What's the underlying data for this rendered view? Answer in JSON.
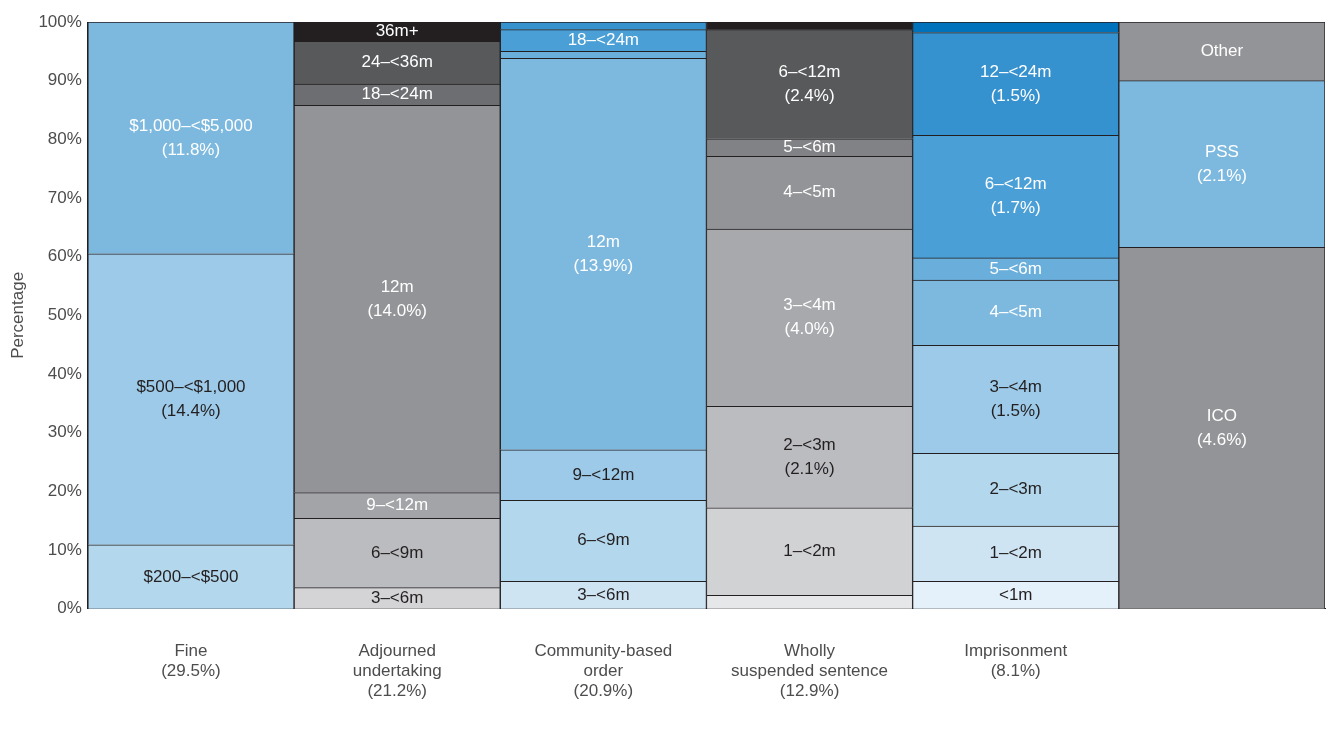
{
  "chart_data": {
    "type": "bar",
    "stacked": true,
    "ylabel": "Percentage",
    "legend": false,
    "grid": false,
    "categories": [
      "Fine\n(29.5%)",
      "Adjourned\nundertaking\n(21.2%)",
      "Community-based\norder\n(20.9%)",
      "Wholly\nsuspended sentence\n(12.9%)",
      "Imprisonment\n(8.1%)",
      null
    ],
    "ylim": [
      0,
      100
    ],
    "yticks": [
      {
        "value": 0,
        "label": "0%"
      },
      {
        "value": 10,
        "label": "10%"
      },
      {
        "value": 20,
        "label": "20%"
      },
      {
        "value": 30,
        "label": "30%"
      },
      {
        "value": 40,
        "label": "40%"
      },
      {
        "value": 50,
        "label": "50%"
      },
      {
        "value": 60,
        "label": "60%"
      },
      {
        "value": 70,
        "label": "70%"
      },
      {
        "value": 80,
        "label": "80%"
      },
      {
        "value": 90,
        "label": "90%"
      },
      {
        "value": 100,
        "label": "100%"
      }
    ],
    "series": [
      {
        "name": "$200–<$500",
        "color": "#b3d7ec",
        "values": [
          10.9,
          null,
          null,
          null,
          null,
          null
        ]
      },
      {
        "name": "$500–<$1,000\n(14.4%)",
        "color": "#9ccae8",
        "values": [
          49.6,
          null,
          null,
          null,
          null,
          null
        ]
      },
      {
        "name": "$1,000–<$5,000\n(11.8%)",
        "color": "#7db9df",
        "values": [
          39.5,
          null,
          null,
          null,
          null,
          null
        ]
      },
      {
        "name": "3–<6m",
        "color": "#d4d4d6",
        "values": [
          null,
          3.6,
          null,
          null,
          null,
          null
        ]
      },
      {
        "name": "6–<9m",
        "color": "#bbbcbf",
        "values": [
          null,
          11.8,
          null,
          null,
          null,
          null
        ]
      },
      {
        "name": "9–<12m",
        "color": "#a3a4a7",
        "values": [
          null,
          4.4,
          null,
          null,
          null,
          null
        ]
      },
      {
        "name": "12m\n(14.0%)",
        "color": "#939497",
        "values": [
          null,
          66.0,
          null,
          null,
          null,
          null
        ]
      },
      {
        "name": "18–<24m",
        "color": "#6d6e71",
        "values": [
          null,
          3.6,
          null,
          null,
          null,
          null
        ]
      },
      {
        "name": "24–<36m",
        "color": "#58595b",
        "values": [
          null,
          7.3,
          null,
          null,
          null,
          null
        ]
      },
      {
        "name": "36m+",
        "color": "#231f20",
        "values": [
          null,
          3.3,
          null,
          null,
          null,
          null
        ]
      },
      {
        "name": "3–<6m",
        "color": "#cfe4f3",
        "values": [
          null,
          null,
          4.7,
          null,
          null,
          null
        ]
      },
      {
        "name": "6–<9m",
        "color": "#b3d7ec",
        "values": [
          null,
          null,
          13.8,
          null,
          null,
          null
        ]
      },
      {
        "name": "9–<12m",
        "color": "#9ccae8",
        "values": [
          null,
          null,
          8.6,
          null,
          null,
          null
        ]
      },
      {
        "name": "12m\n(13.9%)",
        "color": "#7db9df",
        "values": [
          null,
          null,
          66.7,
          null,
          null,
          null
        ]
      },
      {
        "color": "#6aaedb",
        "values": [
          null,
          null,
          1.2,
          null,
          null,
          null
        ]
      },
      {
        "name": "18–<24m",
        "color": "#4a9fd6",
        "values": [
          null,
          null,
          3.7,
          null,
          null,
          null
        ]
      },
      {
        "color": "#3592cf",
        "values": [
          null,
          null,
          1.3,
          null,
          null,
          null
        ]
      },
      {
        "color": "#e6e7e8",
        "values": [
          null,
          null,
          null,
          2.3,
          null,
          null
        ]
      },
      {
        "name": "1–<2m",
        "color": "#d1d2d4",
        "values": [
          null,
          null,
          null,
          14.9,
          null,
          null
        ]
      },
      {
        "name": "2–<3m\n(2.1%)",
        "color": "#bbbcbf",
        "values": [
          null,
          null,
          null,
          17.3,
          null,
          null
        ]
      },
      {
        "name": "3–<4m\n(4.0%)",
        "color": "#a7a9ac",
        "values": [
          null,
          null,
          null,
          30.2,
          null,
          null
        ]
      },
      {
        "name": "4–<5m",
        "color": "#939497",
        "values": [
          null,
          null,
          null,
          12.4,
          null,
          null
        ]
      },
      {
        "name": "5–<6m",
        "color": "#808285",
        "values": [
          null,
          null,
          null,
          3.0,
          null,
          null
        ]
      },
      {
        "name": "6–<12m\n(2.4%)",
        "color": "#58595b",
        "values": [
          null,
          null,
          null,
          18.6,
          null,
          null
        ]
      },
      {
        "color": "#231f20",
        "values": [
          null,
          null,
          null,
          1.3,
          null,
          null
        ]
      },
      {
        "name": "<1m",
        "color": "#e4f1fa",
        "values": [
          null,
          null,
          null,
          null,
          4.7,
          null
        ]
      },
      {
        "name": "1–<2m",
        "color": "#cfe4f3",
        "values": [
          null,
          null,
          null,
          null,
          9.4,
          null
        ]
      },
      {
        "name": "2–<3m",
        "color": "#b3d7ec",
        "values": [
          null,
          null,
          null,
          null,
          12.4,
          null
        ]
      },
      {
        "name": "3–<4m\n(1.5%)",
        "color": "#9ccae8",
        "values": [
          null,
          null,
          null,
          null,
          18.4,
          null
        ]
      },
      {
        "name": "4–<5m",
        "color": "#7db9df",
        "values": [
          null,
          null,
          null,
          null,
          11.1,
          null
        ]
      },
      {
        "name": "5–<6m",
        "color": "#6aaedb",
        "values": [
          null,
          null,
          null,
          null,
          3.8,
          null
        ]
      },
      {
        "name": "6–<12m\n(1.7%)",
        "color": "#4a9fd6",
        "values": [
          null,
          null,
          null,
          null,
          20.9,
          null
        ]
      },
      {
        "name": "12–<24m\n(1.5%)",
        "color": "#3592cf",
        "values": [
          null,
          null,
          null,
          null,
          17.5,
          null
        ]
      },
      {
        "color": "#0072bc",
        "values": [
          null,
          null,
          null,
          null,
          1.8,
          null
        ]
      },
      {
        "name": "ICO\n(4.6%)",
        "color": "#939497",
        "values": [
          null,
          null,
          null,
          null,
          null,
          61.6
        ]
      },
      {
        "name": "PSS\n(2.1%)",
        "color": "#7db9df",
        "values": [
          null,
          null,
          null,
          null,
          null,
          28.4
        ]
      },
      {
        "name": "Other",
        "color": "#939497",
        "values": [
          null,
          null,
          null,
          null,
          null,
          10.0
        ]
      }
    ]
  }
}
